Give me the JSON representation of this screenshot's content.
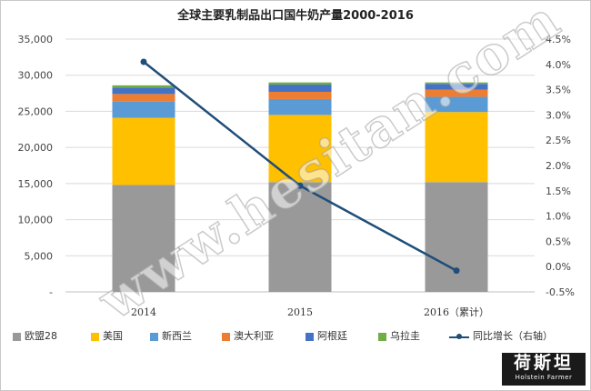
{
  "title": "全球主要乳制品出口国牛奶产量2000-2016",
  "watermark": "www.hesitan.com",
  "logo": {
    "main": "荷斯坦",
    "sub": "Holstein Farmer"
  },
  "colors": {
    "eu": "#999999",
    "us": "#ffc000",
    "nz": "#5b9bd5",
    "au": "#ed7d31",
    "ar": "#4472c4",
    "uy": "#70ad47",
    "line": "#1f4e79"
  },
  "chart_data": {
    "type": "bar",
    "stacked": true,
    "title": "全球主要乳制品出口国牛奶产量2000-2016",
    "categories": [
      "2014",
      "2015",
      "2016（累计）"
    ],
    "series": [
      {
        "name": "欧盟28",
        "key": "eu",
        "values": [
          14800,
          15200,
          15200
        ]
      },
      {
        "name": "美国",
        "key": "us",
        "values": [
          9300,
          9300,
          9700
        ]
      },
      {
        "name": "新西兰",
        "key": "nz",
        "values": [
          2300,
          2200,
          2100
        ]
      },
      {
        "name": "澳大利亚",
        "key": "au",
        "values": [
          1000,
          1000,
          1000
        ]
      },
      {
        "name": "阿根廷",
        "key": "ar",
        "values": [
          900,
          1000,
          800
        ]
      },
      {
        "name": "乌拉圭",
        "key": "uy",
        "values": [
          300,
          300,
          200
        ]
      }
    ],
    "line_series": {
      "name": "同比增长（右轴）",
      "key": "line",
      "values": [
        4.05,
        1.6,
        -0.08
      ],
      "axis": "right"
    },
    "ylim": [
      0,
      35000
    ],
    "y_ticks": [
      "-",
      "5,000",
      "10,000",
      "15,000",
      "20,000",
      "25,000",
      "30,000",
      "35,000"
    ],
    "y2lim": [
      -0.5,
      4.5
    ],
    "y2_ticks": [
      "-0.5%",
      "0.0%",
      "0.5%",
      "1.0%",
      "1.5%",
      "2.0%",
      "2.5%",
      "3.0%",
      "3.5%",
      "4.0%",
      "4.5%"
    ],
    "grid": true,
    "legend_position": "bottom"
  }
}
